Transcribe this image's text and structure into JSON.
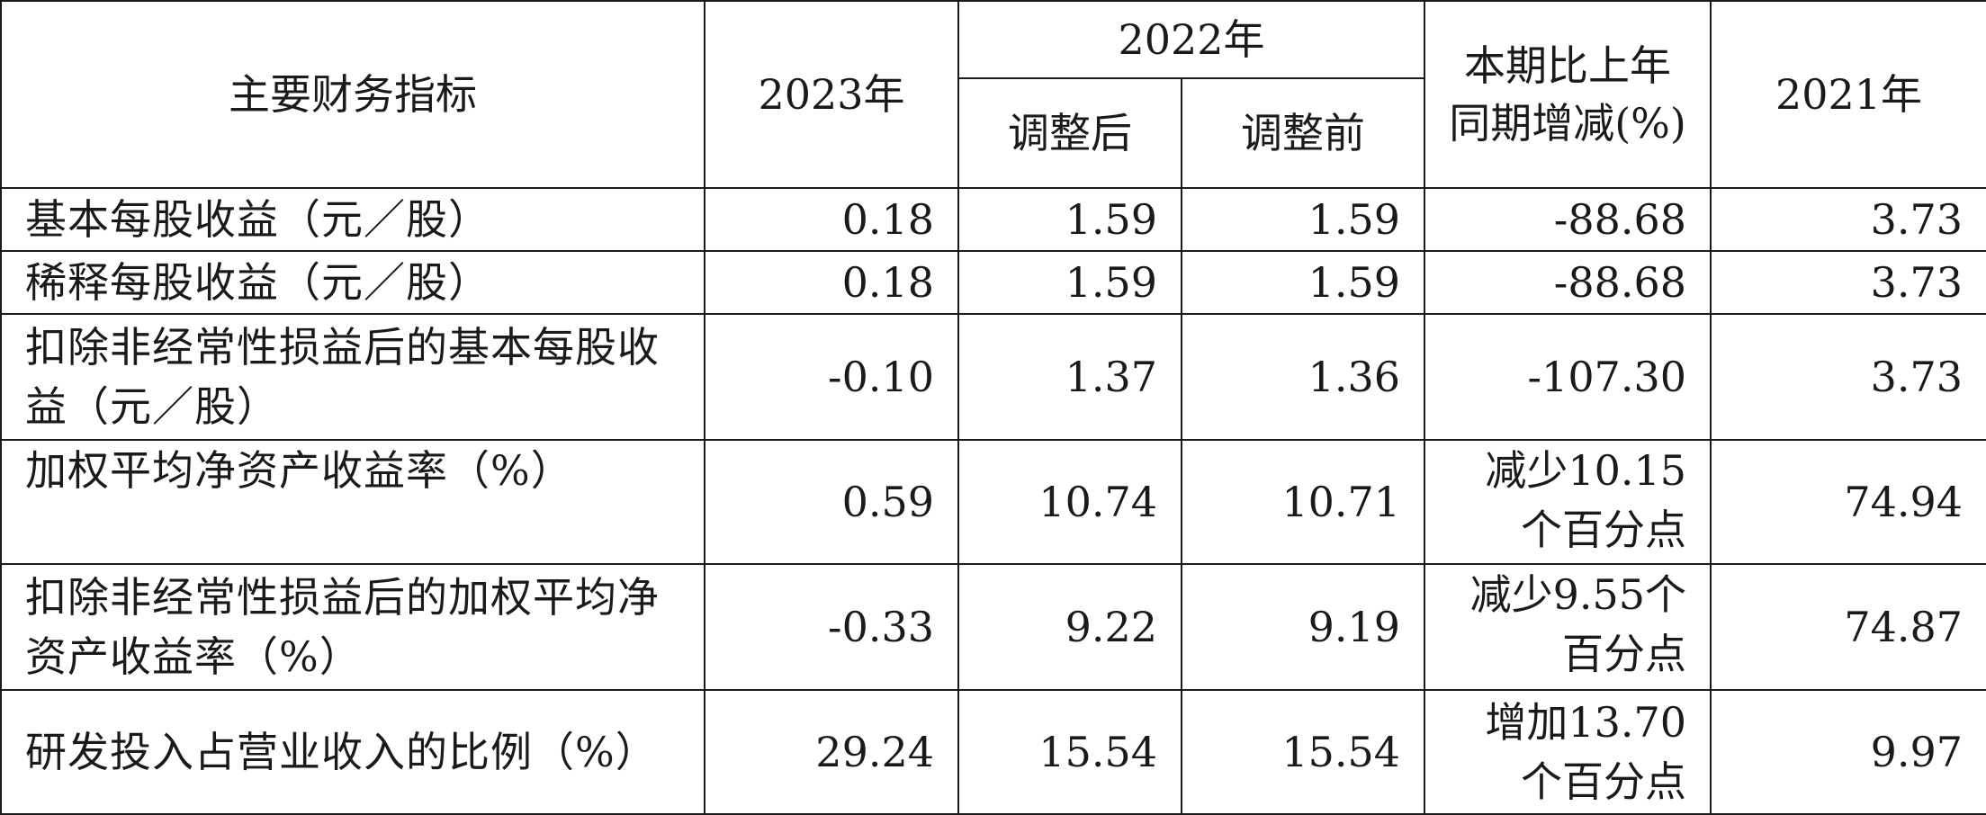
{
  "header": {
    "indicator": "主要财务指标",
    "y2023": "2023年",
    "y2022": "2022年",
    "adjusted_after": "调整后",
    "adjusted_before": "调整前",
    "yoy_change": "本期比上年同期增减(%)",
    "y2021": "2021年"
  },
  "rows": [
    {
      "name": "基本每股收益（元／股）",
      "y2023": "0.18",
      "y2022_after": "1.59",
      "y2022_before": "1.59",
      "change": "-88.68",
      "y2021": "3.73"
    },
    {
      "name": "稀释每股收益（元／股）",
      "y2023": "0.18",
      "y2022_after": "1.59",
      "y2022_before": "1.59",
      "change": "-88.68",
      "y2021": "3.73"
    },
    {
      "name": "扣除非经常性损益后的基本每股收益（元／股）",
      "y2023": "-0.10",
      "y2022_after": "1.37",
      "y2022_before": "1.36",
      "change": "-107.30",
      "y2021": "3.73"
    },
    {
      "name": "加权平均净资产收益率（%）",
      "y2023": "0.59",
      "y2022_after": "10.74",
      "y2022_before": "10.71",
      "change": "减少10.15个百分点",
      "y2021": "74.94"
    },
    {
      "name": "扣除非经常性损益后的加权平均净资产收益率（%）",
      "y2023": "-0.33",
      "y2022_after": "9.22",
      "y2022_before": "9.19",
      "change": "减少9.55个百分点",
      "y2021": "74.87"
    },
    {
      "name": "研发投入占营业收入的比例（%）",
      "y2023": "29.24",
      "y2022_after": "15.54",
      "y2022_before": "15.54",
      "change": "增加13.70个百分点",
      "y2021": "9.97"
    }
  ]
}
